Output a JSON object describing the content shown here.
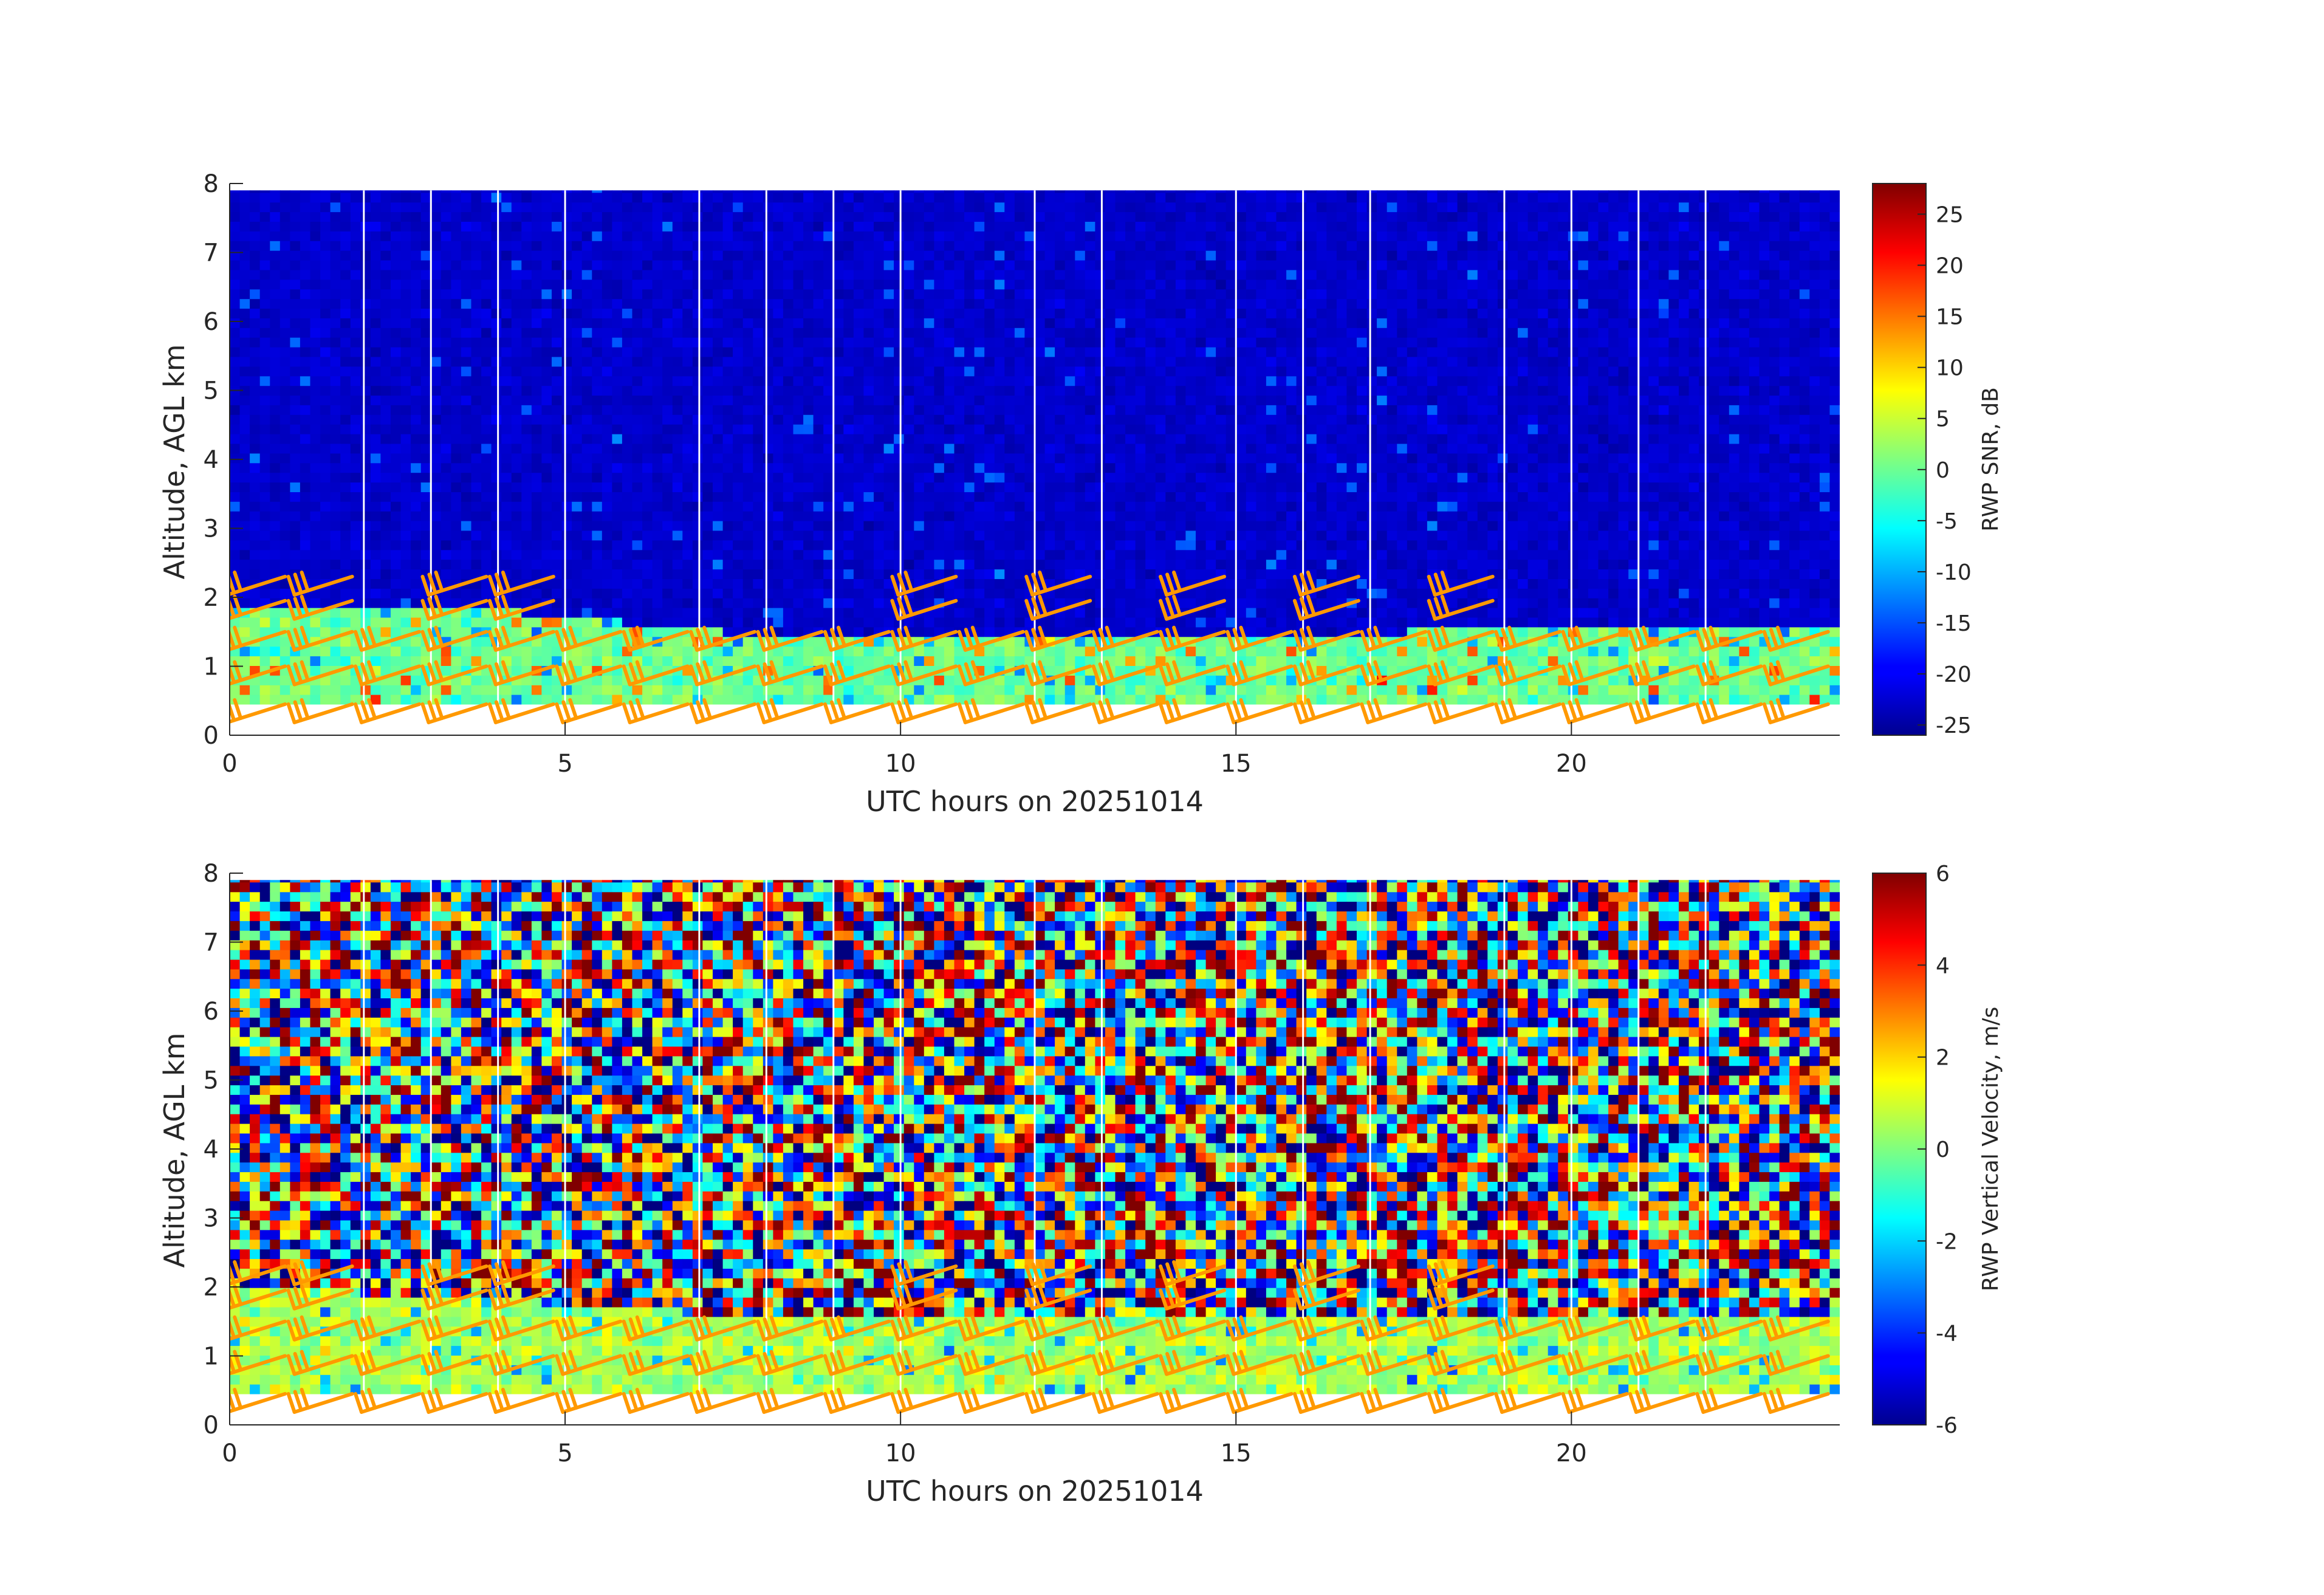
{
  "chart_data": [
    {
      "type": "heatmap",
      "name": "snr-panel",
      "xlabel": "UTC hours on 20251014",
      "ylabel": "Altitude, AGL km",
      "xlim": [
        0,
        24
      ],
      "ylim": [
        0,
        8
      ],
      "x_ticks": [
        0,
        5,
        10,
        15,
        20
      ],
      "y_ticks": [
        0,
        1,
        2,
        3,
        4,
        5,
        6,
        7,
        8
      ],
      "colorbar": {
        "label": "RWP SNR, dB",
        "range": [
          -26,
          28
        ],
        "ticks": [
          -25,
          -20,
          -15,
          -10,
          -5,
          0,
          5,
          10,
          15,
          20,
          25
        ],
        "colormap": "jet"
      },
      "data_top_km": 7.9,
      "data_bottom_km": 0.45,
      "gap_hours": [
        2,
        3,
        4,
        5,
        7,
        8,
        9,
        10,
        12,
        13,
        15,
        16,
        17,
        19,
        20,
        21,
        22
      ],
      "background_value": -22,
      "boundary_layer_top_km": [
        [
          0,
          1.75
        ],
        [
          2,
          1.75
        ],
        [
          4,
          1.75
        ],
        [
          5.5,
          1.6
        ],
        [
          7,
          1.45
        ],
        [
          9,
          1.35
        ],
        [
          12,
          1.35
        ],
        [
          14,
          1.35
        ],
        [
          16,
          1.35
        ],
        [
          18,
          1.45
        ],
        [
          24,
          1.5
        ]
      ],
      "boundary_layer_value": 0,
      "wind_barb_times": [
        0.5,
        1.5,
        2.5,
        3.5,
        4.5,
        5.5,
        6.5,
        7.5,
        8.5,
        9.5,
        10.5,
        11.5,
        12.5,
        13.5,
        14.5,
        15.5,
        16.5,
        17.5,
        18.5,
        19.5,
        20.5,
        21.5,
        22.5,
        23.5
      ],
      "wind_barb_heights_km": [
        0.45,
        1.0,
        1.5,
        1.95,
        2.3
      ]
    },
    {
      "type": "heatmap",
      "name": "velocity-panel",
      "xlabel": "UTC hours on 20251014",
      "ylabel": "Altitude, AGL km",
      "xlim": [
        0,
        24
      ],
      "ylim": [
        0,
        8
      ],
      "x_ticks": [
        0,
        5,
        10,
        15,
        20
      ],
      "y_ticks": [
        0,
        1,
        2,
        3,
        4,
        5,
        6,
        7,
        8
      ],
      "colorbar": {
        "label": "RWP Vertical Velocity, m/s",
        "range": [
          -6,
          6
        ],
        "ticks": [
          -6,
          -4,
          -2,
          0,
          2,
          4,
          6
        ],
        "colormap": "jet"
      },
      "data_top_km": 7.9,
      "data_bottom_km": 0.45,
      "gap_hours": [
        2,
        3,
        4,
        5,
        7,
        8,
        9,
        10,
        12,
        13,
        15,
        16,
        17,
        19,
        20,
        21,
        22
      ],
      "boundary_layer_top_km": [
        [
          0,
          1.95
        ],
        [
          2,
          1.85
        ],
        [
          4,
          1.75
        ],
        [
          5.5,
          1.65
        ],
        [
          7,
          1.55
        ],
        [
          9,
          1.5
        ],
        [
          12,
          1.5
        ],
        [
          16,
          1.5
        ],
        [
          20,
          1.55
        ],
        [
          24,
          1.55
        ]
      ],
      "boundary_layer_value": 0.5,
      "wind_barb_times": [
        0.5,
        1.5,
        2.5,
        3.5,
        4.5,
        5.5,
        6.5,
        7.5,
        8.5,
        9.5,
        10.5,
        11.5,
        12.5,
        13.5,
        14.5,
        15.5,
        16.5,
        17.5,
        18.5,
        19.5,
        20.5,
        21.5,
        22.5,
        23.5
      ],
      "wind_barb_heights_km": [
        0.45,
        1.0,
        1.5,
        1.95,
        2.3
      ]
    }
  ],
  "colors": {
    "wind_barb": "#ff9900",
    "gap": "#ffffff",
    "axis": "#262626"
  }
}
